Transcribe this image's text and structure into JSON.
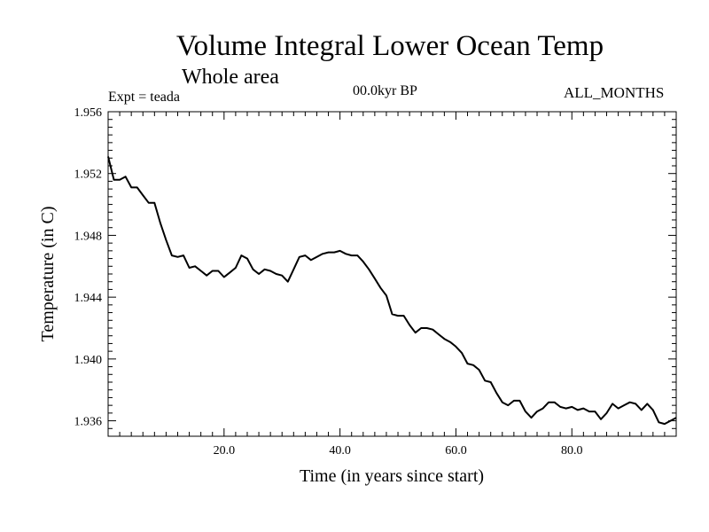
{
  "chart_data": {
    "type": "line",
    "title": "Volume Integral Lower Ocean Temp",
    "subtitle": "Whole area",
    "expt": "Expt = teada",
    "period": "00.0kyr BP",
    "months": "ALL_MONTHS",
    "xlabel": "Time (in years since start)",
    "ylabel": "Temperature (in C)",
    "xlim": [
      0,
      98
    ],
    "ylim": [
      1.935,
      1.956
    ],
    "xticks": [
      20,
      40,
      60,
      80
    ],
    "xtick_labels": [
      "20.0",
      "40.0",
      "60.0",
      "80.0"
    ],
    "yticks": [
      1.936,
      1.94,
      1.944,
      1.948,
      1.952,
      1.956
    ],
    "ytick_labels": [
      "1.936",
      "1.940",
      "1.944",
      "1.948",
      "1.952",
      "1.956"
    ],
    "line_color": "#000000",
    "series": [
      {
        "name": "Temperature",
        "x": [
          0,
          1,
          2,
          3,
          4,
          5,
          6,
          7,
          8,
          9,
          10,
          11,
          12,
          13,
          14,
          15,
          16,
          17,
          18,
          19,
          20,
          21,
          22,
          23,
          24,
          25,
          26,
          27,
          28,
          29,
          30,
          31,
          32,
          33,
          34,
          35,
          36,
          37,
          38,
          39,
          40,
          41,
          42,
          43,
          44,
          45,
          46,
          47,
          48,
          49,
          50,
          51,
          52,
          53,
          54,
          55,
          56,
          57,
          58,
          59,
          60,
          61,
          62,
          63,
          64,
          65,
          66,
          67,
          68,
          69,
          70,
          71,
          72,
          73,
          74,
          75,
          76,
          77,
          78,
          79,
          80,
          81,
          82,
          83,
          84,
          85,
          86,
          87,
          88,
          89,
          90,
          91,
          92,
          93,
          94,
          95,
          96,
          97,
          98
        ],
        "values": [
          1.9531,
          1.9516,
          1.9516,
          1.9518,
          1.9511,
          1.9511,
          1.9506,
          1.9501,
          1.9501,
          1.9488,
          1.9477,
          1.9467,
          1.9466,
          1.9467,
          1.9459,
          1.946,
          1.9457,
          1.9454,
          1.9457,
          1.9457,
          1.9453,
          1.9456,
          1.9459,
          1.9467,
          1.9465,
          1.9458,
          1.9455,
          1.9458,
          1.9457,
          1.9455,
          1.9454,
          1.945,
          1.9458,
          1.9466,
          1.9467,
          1.9464,
          1.9466,
          1.9468,
          1.9469,
          1.9469,
          1.947,
          1.9468,
          1.9467,
          1.9467,
          1.9463,
          1.9458,
          1.9452,
          1.9446,
          1.9441,
          1.9429,
          1.9428,
          1.9428,
          1.9422,
          1.9417,
          1.942,
          1.942,
          1.9419,
          1.9416,
          1.9413,
          1.9411,
          1.9408,
          1.9404,
          1.9397,
          1.9396,
          1.9393,
          1.9386,
          1.9385,
          1.9378,
          1.9372,
          1.937,
          1.9373,
          1.9373,
          1.9366,
          1.9362,
          1.9366,
          1.9368,
          1.9372,
          1.9372,
          1.9369,
          1.9368,
          1.9369,
          1.9367,
          1.9368,
          1.9366,
          1.9366,
          1.9361,
          1.9365,
          1.9371,
          1.9368,
          1.937,
          1.9372,
          1.9371,
          1.9367,
          1.9371,
          1.9367,
          1.9359,
          1.9358,
          1.936,
          1.9362
        ]
      }
    ]
  }
}
